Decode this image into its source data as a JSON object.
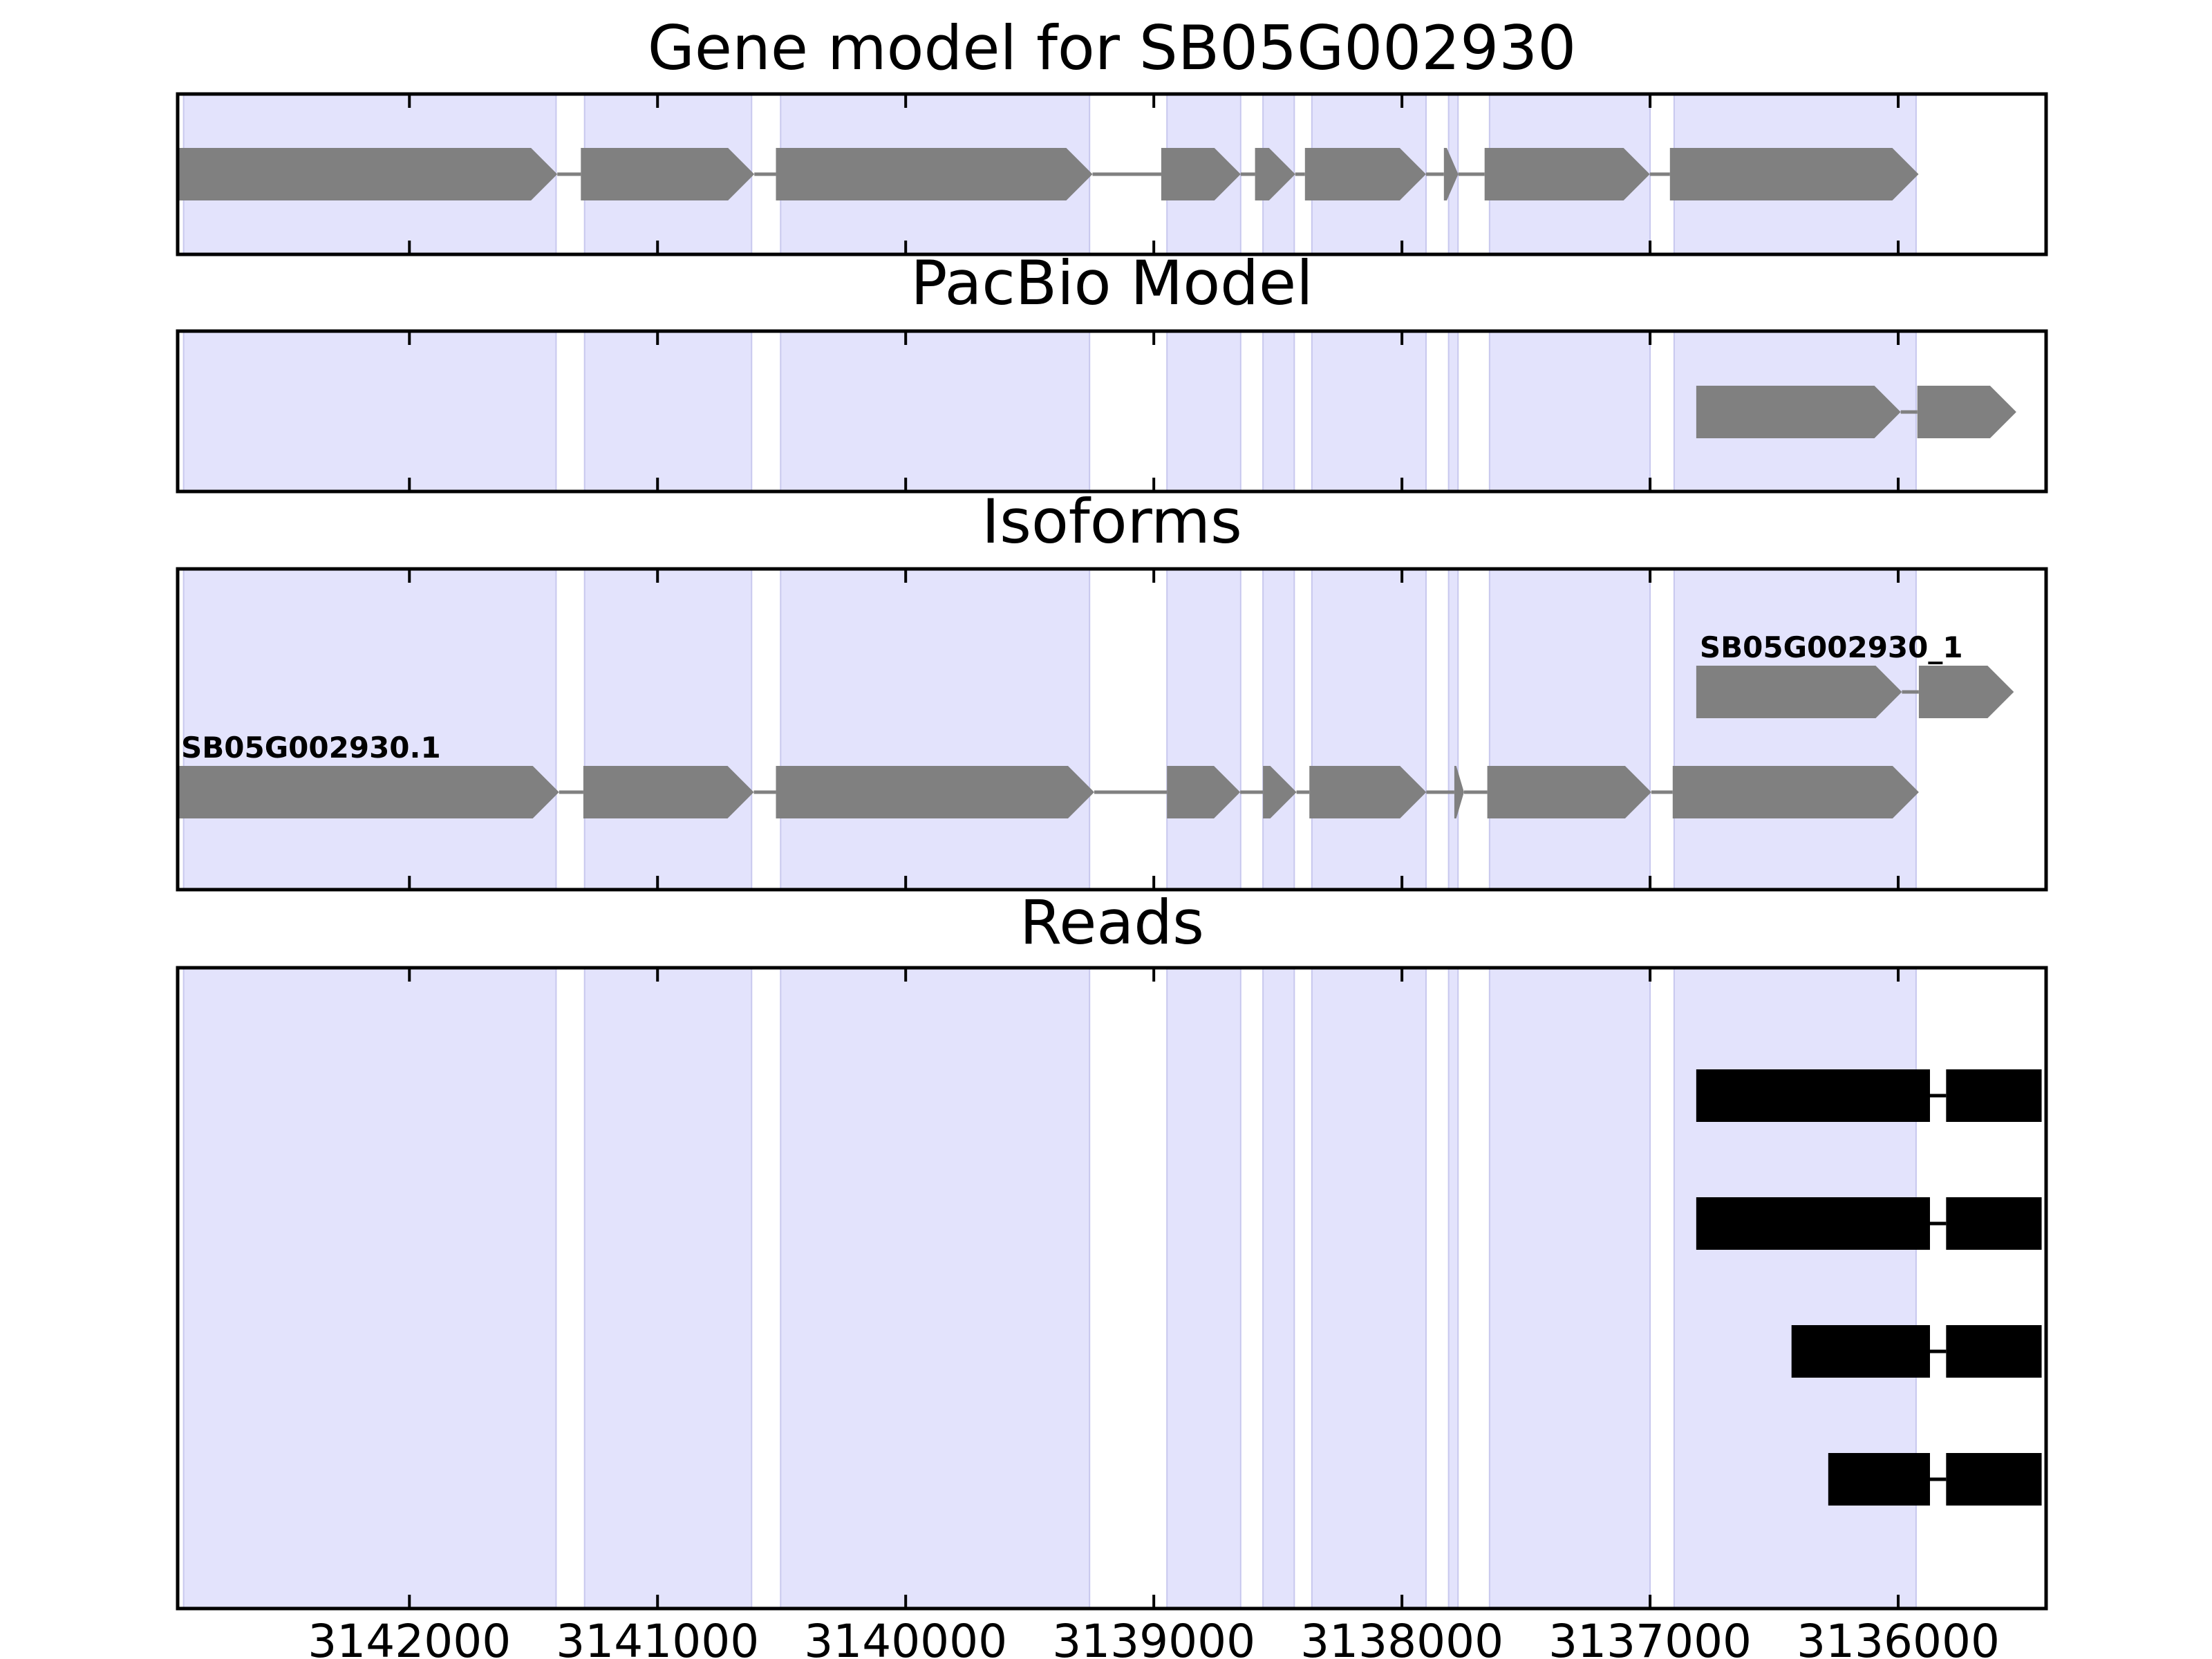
{
  "chart_data": {
    "type": "gene-track",
    "x_axis": {
      "ticks": [
        3142000,
        3141000,
        3140000,
        3139000,
        3138000,
        3137000,
        3136000
      ],
      "xlim": [
        3142934,
        3135404
      ],
      "reversed": true
    },
    "exon_shading": {
      "color": "#e3e3fc",
      "regions": [
        [
          3142910,
          3141409
        ],
        [
          3141294,
          3140621
        ],
        [
          3140504,
          3139259
        ],
        [
          3138947,
          3138650
        ],
        [
          3138560,
          3138434
        ],
        [
          3138363,
          3137903
        ],
        [
          3137812,
          3137774
        ],
        [
          3137647,
          3137000
        ],
        [
          3136903,
          3135928
        ]
      ]
    },
    "panels": [
      {
        "title": "Gene model for SB05G002930",
        "tracks": [
          {
            "label": "",
            "exons": [
              [
                3142934,
                3141404
              ],
              [
                3141309,
                3140610
              ],
              [
                3140523,
                3139247
              ],
              [
                3138970,
                3138650
              ],
              [
                3138592,
                3138430
              ],
              [
                3138391,
                3137903
              ],
              [
                3137831,
                3137773
              ],
              [
                3137667,
                3137001
              ],
              [
                3136920,
                3135918
              ]
            ]
          }
        ]
      },
      {
        "title": "PacBio Model",
        "tracks": [
          {
            "label": "",
            "exons": [
              [
                3136814,
                3135990
              ],
              [
                3135923,
                3135524
              ]
            ]
          }
        ]
      },
      {
        "title": "Isoforms",
        "tracks": [
          {
            "label": "SB05G002930.1",
            "exons": [
              [
                3142934,
                3141397
              ],
              [
                3141299,
                3140612
              ],
              [
                3140523,
                3139240
              ],
              [
                3138947,
                3138652
              ],
              [
                3138560,
                3138425
              ],
              [
                3138373,
                3137902
              ],
              [
                3137789,
                3137750
              ],
              [
                3137656,
                3136995
              ],
              [
                3136909,
                3135917
              ]
            ]
          },
          {
            "label": "SB05G002930_1",
            "exons": [
              [
                3136814,
                3135985
              ],
              [
                3135917,
                3135534
              ]
            ]
          }
        ]
      },
      {
        "title": "Reads",
        "color": "#000000",
        "reads": [
          [
            [
              3136814,
              3135872
            ],
            [
              3135807,
              3135422
            ]
          ],
          [
            [
              3136814,
              3135872
            ],
            [
              3135807,
              3135422
            ]
          ],
          [
            [
              3136430,
              3135872
            ],
            [
              3135807,
              3135422
            ]
          ],
          [
            [
              3136282,
              3135872
            ],
            [
              3135807,
              3135422
            ]
          ]
        ]
      }
    ]
  },
  "colors": {
    "exon": "#808080",
    "intron": "#808080",
    "read": "#000000",
    "shading": "#e3e3fc",
    "shading_edge": "#c8c8ee"
  }
}
